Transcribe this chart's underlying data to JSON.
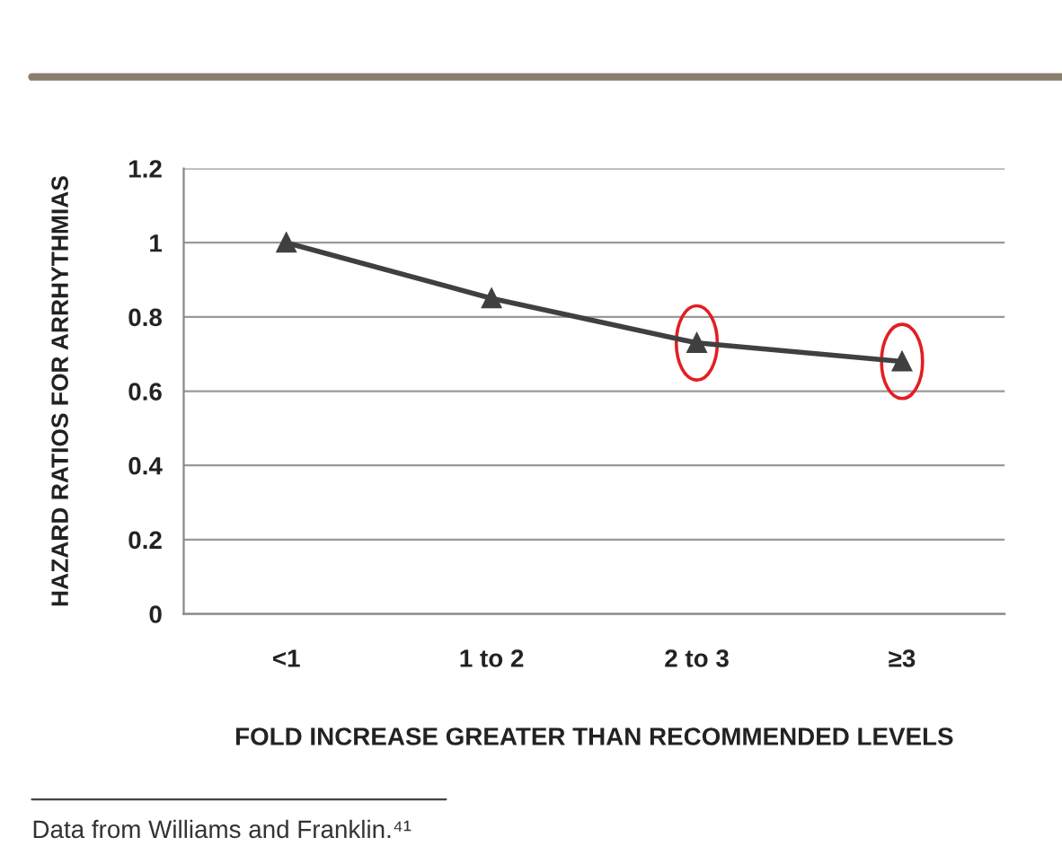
{
  "chart_data": {
    "type": "line",
    "xlabel": "FOLD INCREASE GREATER THAN RECOMMENDED LEVELS",
    "ylabel": "HAZARD RATIOS FOR ARRHYTHMIAS",
    "categories": [
      "<1",
      "1 to 2",
      "2 to 3",
      "≥3"
    ],
    "series": [
      {
        "color": "#404040",
        "values": [
          1.0,
          0.85,
          0.73,
          0.68
        ]
      }
    ],
    "ylim": [
      0,
      1.2
    ],
    "yticks": [
      0,
      0.2,
      0.4,
      0.6,
      0.8,
      1,
      1.2
    ],
    "grid": "y",
    "marker": "triangle",
    "line_style": "solid",
    "legend": false,
    "annotations": [
      "Data from Williams and Franklin.⁴¹"
    ]
  }
}
